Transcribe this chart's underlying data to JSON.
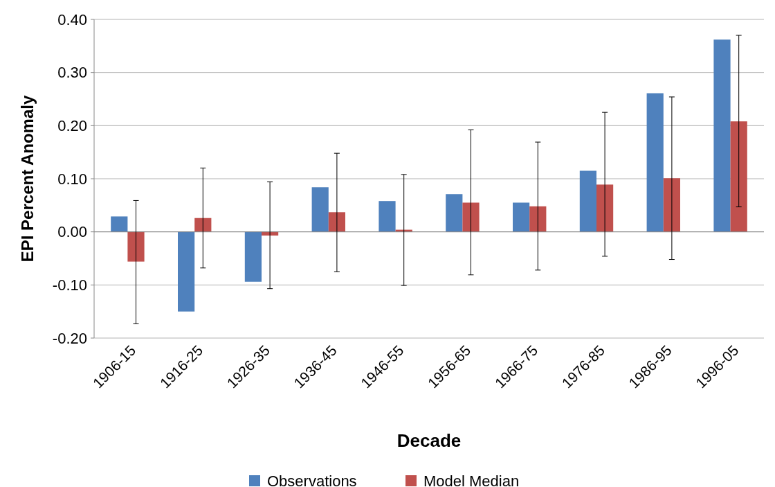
{
  "chart_data": {
    "type": "bar",
    "xlabel": "Decade",
    "ylabel": "EPI Percent Anomaly",
    "categories": [
      "1906-15",
      "1916-25",
      "1926-35",
      "1936-45",
      "1946-55",
      "1956-65",
      "1966-75",
      "1976-85",
      "1986-95",
      "1996-05"
    ],
    "series": [
      {
        "name": "Observations",
        "color": "#4f81bd",
        "values": [
          0.029,
          -0.15,
          -0.094,
          0.084,
          0.058,
          0.071,
          0.055,
          0.115,
          0.261,
          0.362
        ]
      },
      {
        "name": "Model Median",
        "color": "#c0504d",
        "values": [
          -0.056,
          0.026,
          -0.007,
          0.037,
          0.004,
          0.055,
          0.048,
          0.089,
          0.101,
          0.208
        ],
        "errors": [
          [
            -0.173,
            0.059
          ],
          [
            -0.068,
            0.12
          ],
          [
            -0.107,
            0.094
          ],
          [
            -0.075,
            0.148
          ],
          [
            -0.101,
            0.108
          ],
          [
            -0.081,
            0.192
          ],
          [
            -0.072,
            0.169
          ],
          [
            -0.046,
            0.225
          ],
          [
            -0.052,
            0.254
          ],
          [
            0.047,
            0.37
          ]
        ]
      }
    ],
    "ylim": [
      -0.2,
      0.4
    ],
    "yticks": [
      {
        "value": -0.2,
        "label": "-0.20"
      },
      {
        "value": -0.1,
        "label": "-0.10"
      },
      {
        "value": 0,
        "label": "0.00"
      },
      {
        "value": 0.1,
        "label": "0.10"
      },
      {
        "value": 0.2,
        "label": "0.20"
      },
      {
        "value": 0.3,
        "label": "0.30"
      },
      {
        "value": 0.4,
        "label": "0.40"
      }
    ],
    "grid": "y",
    "legend": "bottom"
  }
}
